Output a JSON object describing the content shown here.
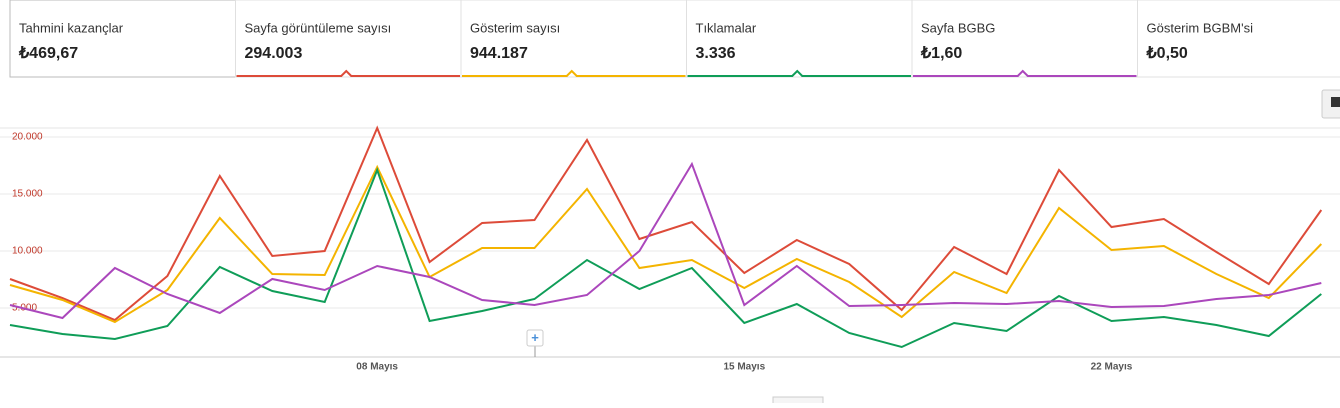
{
  "metrics": [
    {
      "label": "Tahmini kazançlar",
      "value": "₺469,67"
    },
    {
      "label": "Sayfa görüntüleme sayısı",
      "value": "294.003",
      "color": "#dd4b39"
    },
    {
      "label": "Gösterim sayısı",
      "value": "944.187",
      "color": "#f4b400"
    },
    {
      "label": "Tıklamalar",
      "value": "3.336",
      "color": "#0f9d58"
    },
    {
      "label": "Sayfa BGBG",
      "value": "₺1,60",
      "color": "#ab47bc"
    },
    {
      "label": "Gösterim BGBM'si",
      "value": "₺0,50"
    }
  ],
  "chart_data": {
    "type": "line",
    "categories": [
      null,
      null,
      null,
      null,
      null,
      null,
      null,
      "08 Mayıs",
      null,
      null,
      null,
      null,
      null,
      null,
      "15 Mayıs",
      null,
      null,
      null,
      null,
      null,
      null,
      "22 Mayıs",
      null,
      null,
      null,
      null
    ],
    "series": [
      {
        "color": "#dd4b39",
        "values": [
          7544,
          5877,
          3947,
          7807,
          16579,
          9561,
          10000,
          20789,
          9035,
          12456,
          12719,
          19737,
          11053,
          12544,
          8070,
          10965,
          8860,
          4825,
          10351,
          7982,
          17105,
          12105,
          12807,
          9912,
          7105,
          13596
        ]
      },
      {
        "color": "#f4b400",
        "values": [
          7018,
          5702,
          3772,
          6579,
          12895,
          7982,
          7895,
          17368,
          7719,
          10263,
          10263,
          15439,
          8509,
          9211,
          6754,
          9298,
          7281,
          4211,
          8158,
          6316,
          13772,
          10088,
          10439,
          7982,
          5877,
          10614
        ]
      },
      {
        "color": "#0f9d58",
        "values": [
          3509,
          2719,
          2281,
          3421,
          8596,
          6491,
          5526,
          17105,
          3860,
          4737,
          5789,
          9211,
          6667,
          8509,
          3684,
          5351,
          2807,
          1579,
          3684,
          2982,
          6053,
          3860,
          4211,
          3509,
          2544,
          6228
        ]
      },
      {
        "color": "#ab47bc",
        "values": [
          5263,
          4123,
          8509,
          6228,
          4561,
          7544,
          6579,
          8684,
          7719,
          5702,
          5263,
          6140,
          10000,
          17632,
          5263,
          8684,
          5175,
          5263,
          5439,
          5351,
          5614,
          5088,
          5175,
          5789,
          6140,
          7193
        ]
      }
    ],
    "ylim": [
      700,
      20790
    ],
    "yticks": [
      {
        "value": 5000,
        "label": "5.000"
      },
      {
        "value": 10000,
        "label": "10.000"
      },
      {
        "value": 15000,
        "label": "15.000"
      },
      {
        "value": 20000,
        "label": "20.000"
      }
    ],
    "grid": true
  }
}
